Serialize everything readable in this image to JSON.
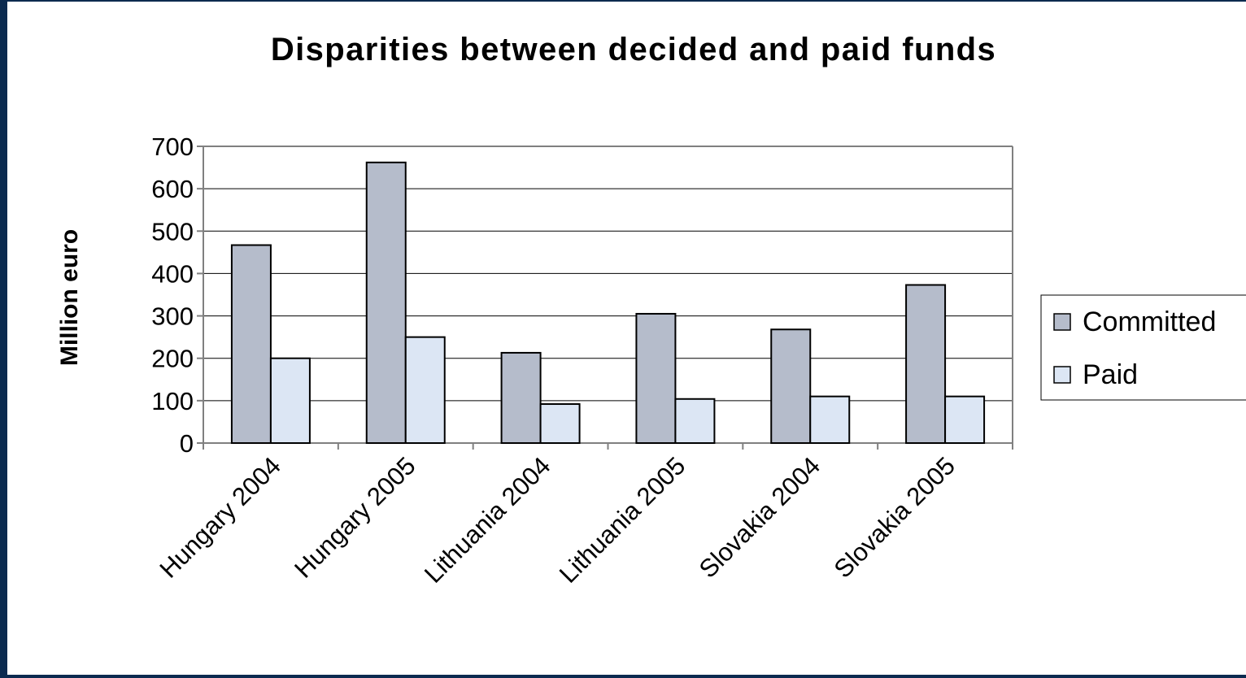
{
  "colors": {
    "frame": "#0b2a4f",
    "committed": "#b5bccb",
    "paid": "#dce6f4",
    "axis": "#808080",
    "bar_stroke": "#000000"
  },
  "chart_data": {
    "type": "bar",
    "title": "Disparities between decided and paid funds",
    "xlabel": "",
    "ylabel": "Million euro",
    "categories": [
      "Hungary 2004",
      "Hungary 2005",
      "Lithuania 2004",
      "Lithuania 2005",
      "Slovakia 2004",
      "Slovakia 2005"
    ],
    "series": [
      {
        "name": "Committed",
        "values": [
          467,
          662,
          213,
          305,
          268,
          373
        ]
      },
      {
        "name": "Paid",
        "values": [
          200,
          250,
          92,
          104,
          110,
          110
        ]
      }
    ],
    "ylim": [
      0,
      700
    ],
    "yticks": [
      0,
      100,
      200,
      300,
      400,
      500,
      600,
      700
    ],
    "grid": true,
    "legend": "right"
  }
}
